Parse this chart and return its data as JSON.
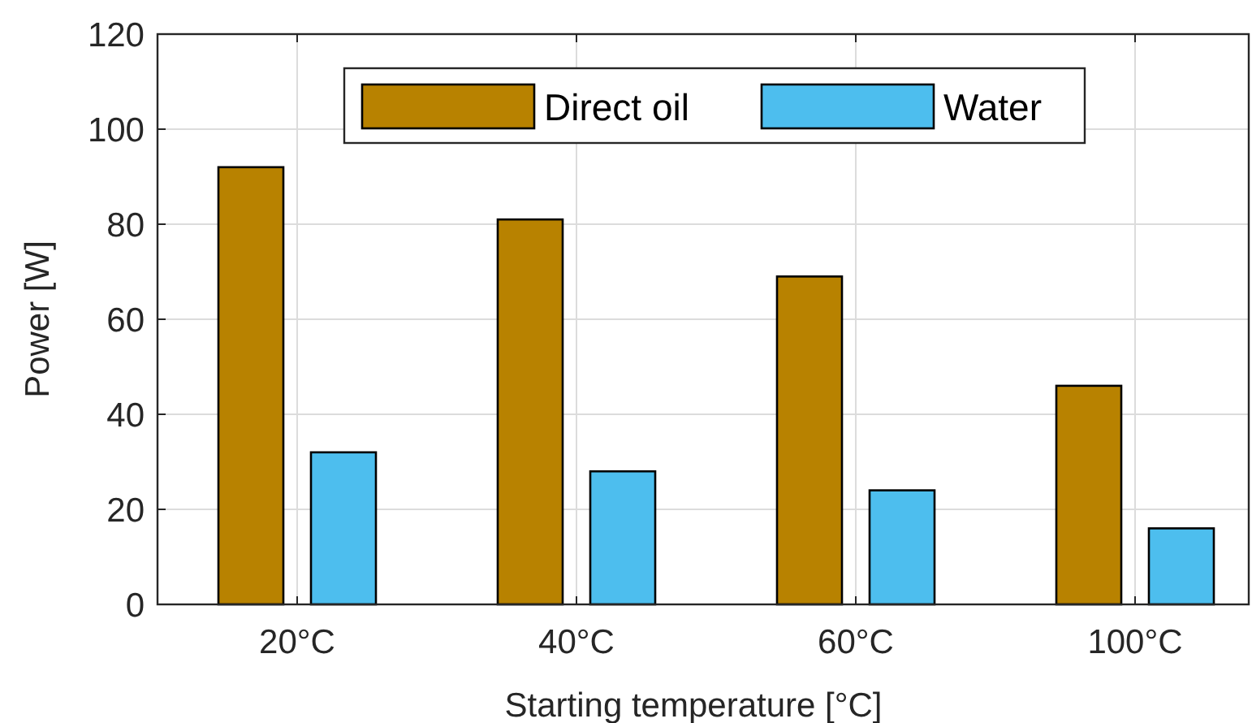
{
  "chart_data": {
    "type": "bar",
    "xlabel": "Starting temperature [°C]",
    "ylabel": "Power [W]",
    "categories": [
      "20°C",
      "40°C",
      "60°C",
      "100°C"
    ],
    "series": [
      {
        "name": "Direct oil",
        "color": "#b88200",
        "values": [
          92,
          81,
          69,
          46
        ]
      },
      {
        "name": "Water",
        "color": "#4dbeee",
        "values": [
          32,
          28,
          24,
          16
        ]
      }
    ],
    "ylim": [
      0,
      120
    ],
    "yticks": [
      0,
      20,
      40,
      60,
      80,
      100,
      120
    ],
    "grid": true,
    "legend": "top"
  }
}
